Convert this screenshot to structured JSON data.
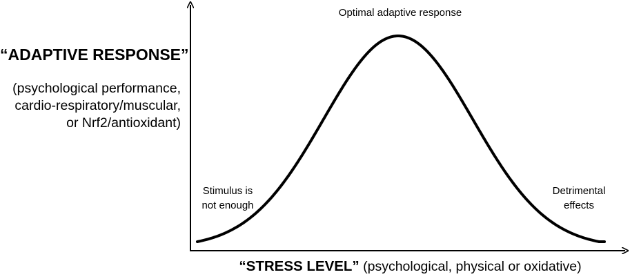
{
  "y_axis": {
    "title": "“ADAPTIVE RESPONSE”",
    "subtitle_lines": [
      "(psychological performance,",
      "cardio-respiratory/muscular,",
      "or Nrf2/antioxidant)"
    ]
  },
  "x_axis": {
    "title_bold": "“STRESS LEVEL”",
    "title_rest": " (psychological, physical or oxidative)"
  },
  "annotations": {
    "peak": "Optimal adaptive response",
    "low": [
      "Stimulus is",
      "not enough"
    ],
    "high": [
      "Detrimental",
      "effects"
    ]
  },
  "curve": {
    "shape": "bell",
    "color": "#000000"
  }
}
